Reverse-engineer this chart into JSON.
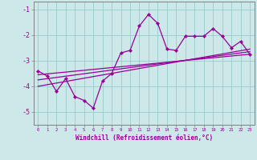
{
  "xlabel": "Windchill (Refroidissement éolien,°C)",
  "background_color": "#cce8e8",
  "grid_color": "#99cccc",
  "line_color": "#990099",
  "spine_color": "#808080",
  "xlim": [
    -0.5,
    23.5
  ],
  "ylim": [
    -5.5,
    -0.7
  ],
  "yticks": [
    -5,
    -4,
    -3,
    -2,
    -1
  ],
  "xticks": [
    0,
    1,
    2,
    3,
    4,
    5,
    6,
    7,
    8,
    9,
    10,
    11,
    12,
    13,
    14,
    15,
    16,
    17,
    18,
    19,
    20,
    21,
    22,
    23
  ],
  "hours": [
    0,
    1,
    2,
    3,
    4,
    5,
    6,
    7,
    8,
    9,
    10,
    11,
    12,
    13,
    14,
    15,
    16,
    17,
    18,
    19,
    20,
    21,
    22,
    23
  ],
  "windchill": [
    -3.4,
    -3.6,
    -4.2,
    -3.7,
    -4.4,
    -4.55,
    -4.85,
    -3.8,
    -3.5,
    -2.7,
    -2.6,
    -1.65,
    -1.2,
    -1.55,
    -2.55,
    -2.6,
    -2.05,
    -2.05,
    -2.05,
    -1.75,
    -2.05,
    -2.5,
    -2.25,
    -2.75
  ],
  "trend1_x": [
    0,
    23
  ],
  "trend1_y": [
    -3.55,
    -2.75
  ],
  "trend2_x": [
    0,
    23
  ],
  "trend2_y": [
    -3.75,
    -2.65
  ],
  "trend3_x": [
    0,
    23
  ],
  "trend3_y": [
    -4.0,
    -2.55
  ]
}
